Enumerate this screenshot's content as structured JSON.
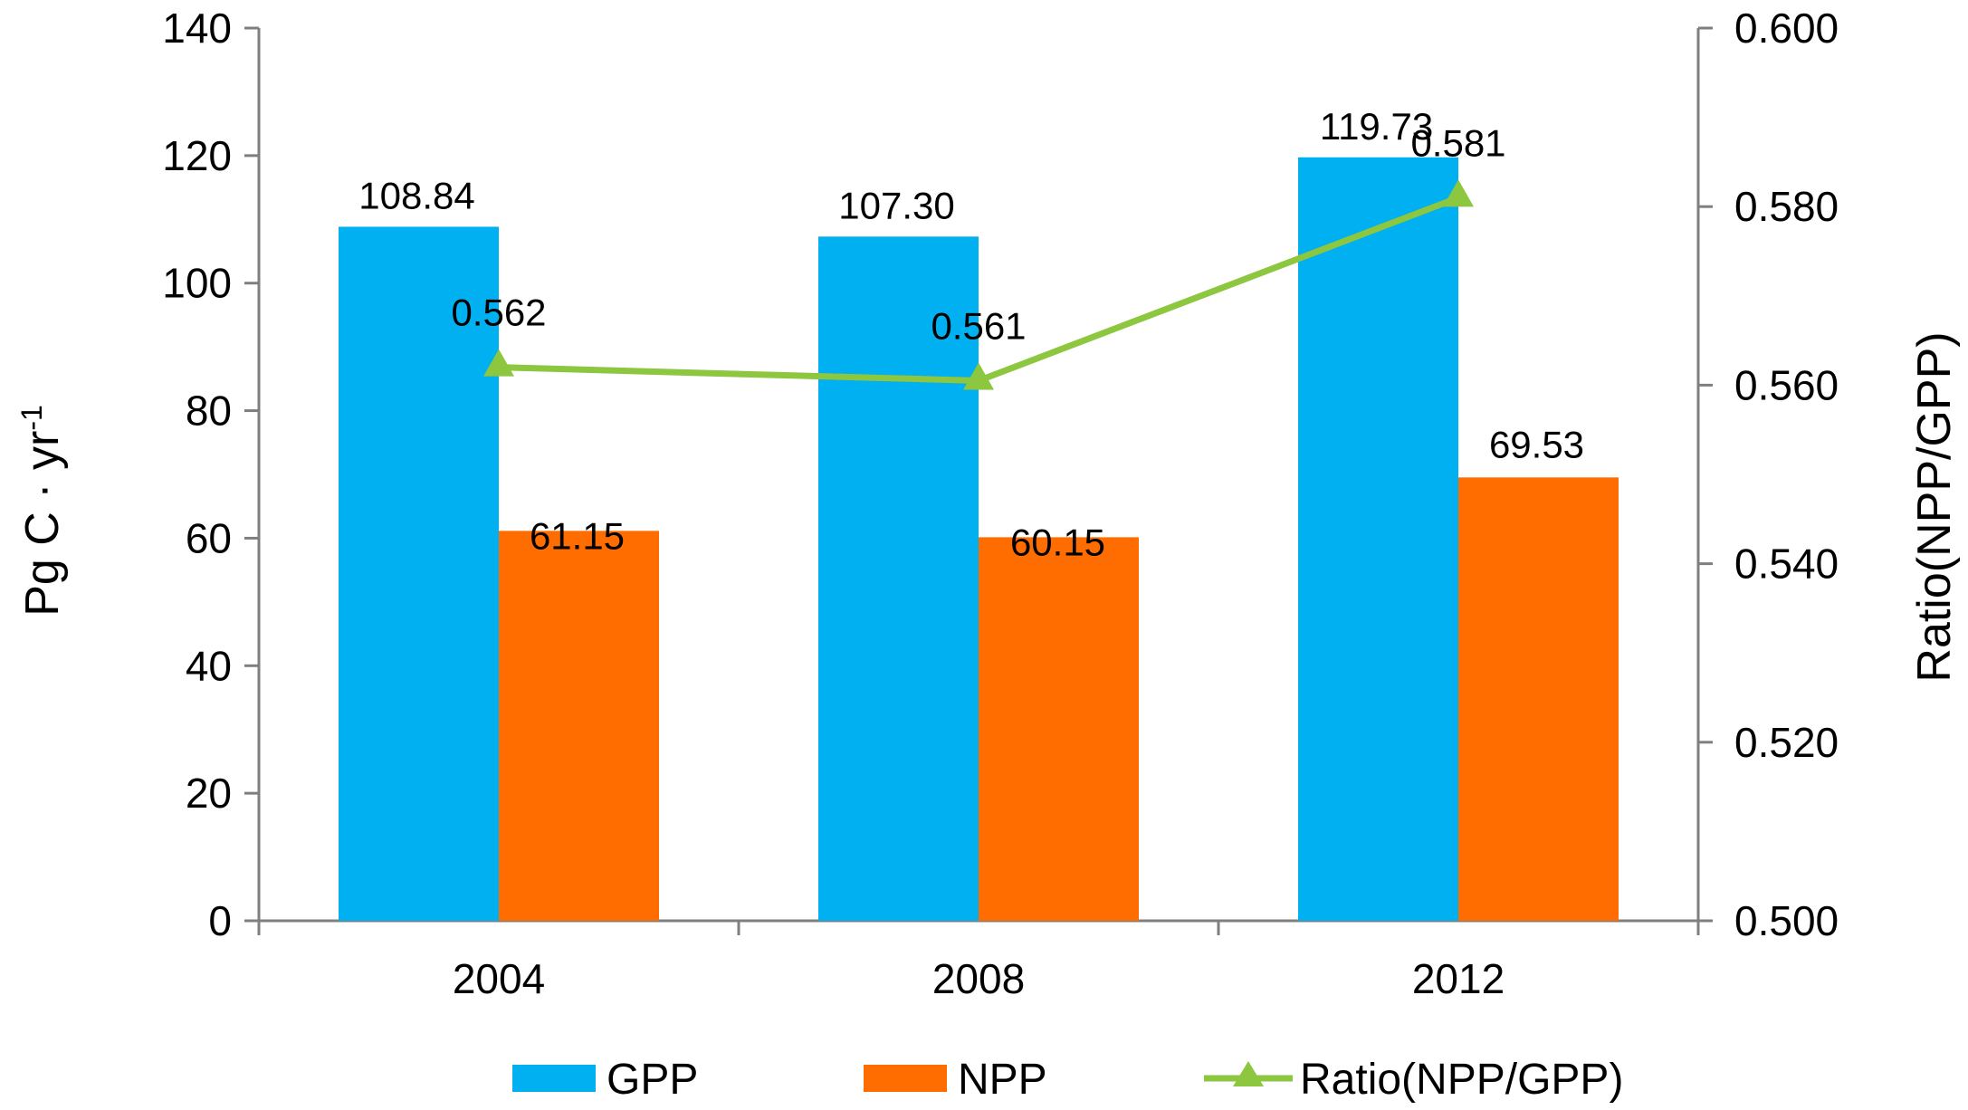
{
  "chart_data": {
    "type": "bar+line",
    "categories": [
      "2004",
      "2008",
      "2012"
    ],
    "series": [
      {
        "name": "GPP",
        "kind": "bar",
        "axis": "left",
        "color": "#00b0f0",
        "values": [
          108.84,
          107.3,
          119.73
        ],
        "labels": [
          "108.84",
          "107.30",
          "119.73"
        ]
      },
      {
        "name": "NPP",
        "kind": "bar",
        "axis": "left",
        "color": "#ff6d00",
        "values": [
          61.15,
          60.15,
          69.53
        ],
        "labels": [
          "61.15",
          "60.15",
          "69.53"
        ]
      },
      {
        "name": "Ratio(NPP/GPP)",
        "kind": "line",
        "axis": "right",
        "marker": "triangle",
        "color": "#8dc63f",
        "values": [
          0.562,
          0.5605,
          0.581
        ],
        "labels": [
          "0.562",
          "0.561",
          "0.581"
        ]
      }
    ],
    "y_left": {
      "label_main": "Pg C · yr",
      "label_sup": "-1",
      "range": [
        0,
        140
      ],
      "ticks": [
        0,
        20,
        40,
        60,
        80,
        100,
        120,
        140
      ],
      "tick_labels": [
        "0",
        "20",
        "40",
        "60",
        "80",
        "100",
        "120",
        "140"
      ]
    },
    "y_right": {
      "label": "Ratio(NPP/GPP)",
      "range": [
        0.5,
        0.6
      ],
      "ticks": [
        0.5,
        0.52,
        0.54,
        0.56,
        0.58,
        0.6
      ],
      "tick_labels": [
        "0.500",
        "0.520",
        "0.540",
        "0.560",
        "0.580",
        "0.600"
      ]
    },
    "legend": {
      "position": "bottom",
      "entries": [
        "GPP",
        "NPP",
        "Ratio(NPP/GPP)"
      ]
    },
    "grid": false
  }
}
